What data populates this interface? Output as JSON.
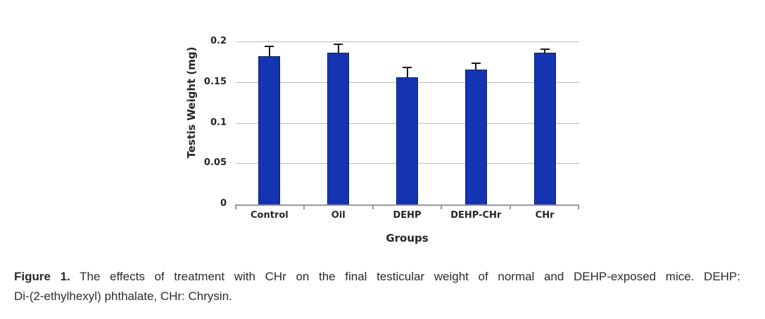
{
  "chart_data": {
    "type": "bar",
    "categories": [
      "Control",
      "Oil",
      "DEHP",
      "DEHP-CHr",
      "CHr"
    ],
    "values": [
      0.183,
      0.187,
      0.157,
      0.166,
      0.187
    ],
    "errors_plus": [
      0.013,
      0.011,
      0.013,
      0.009,
      0.005
    ],
    "title": "",
    "xlabel": "Groups",
    "ylabel": "Testis Weight (mg)",
    "ylim": [
      0,
      0.2
    ],
    "yticks": [
      0,
      0.05,
      0.1,
      0.15,
      0.2
    ],
    "ytick_labels": [
      "0",
      "0.05",
      "0.1",
      "0.15",
      "0.2"
    ],
    "grid": true,
    "legend": false,
    "bar_color": "#1434b2",
    "bar_border_color": "#0e2268",
    "error_bar_color": "#1a1a1a",
    "gridline_color": "#bdbdbd",
    "axis_line_color": "#9a9a9a",
    "tick_label_color": "#262626"
  },
  "caption": {
    "prefix": "Figure 1.",
    "line1_rest": "The effects of treatment with CHr on the final testicular weight of normal and DEHP-exposed mice. DEHP:",
    "line2": "Di-(2-ethylhexyl) phthalate, CHr: Chrysin."
  }
}
